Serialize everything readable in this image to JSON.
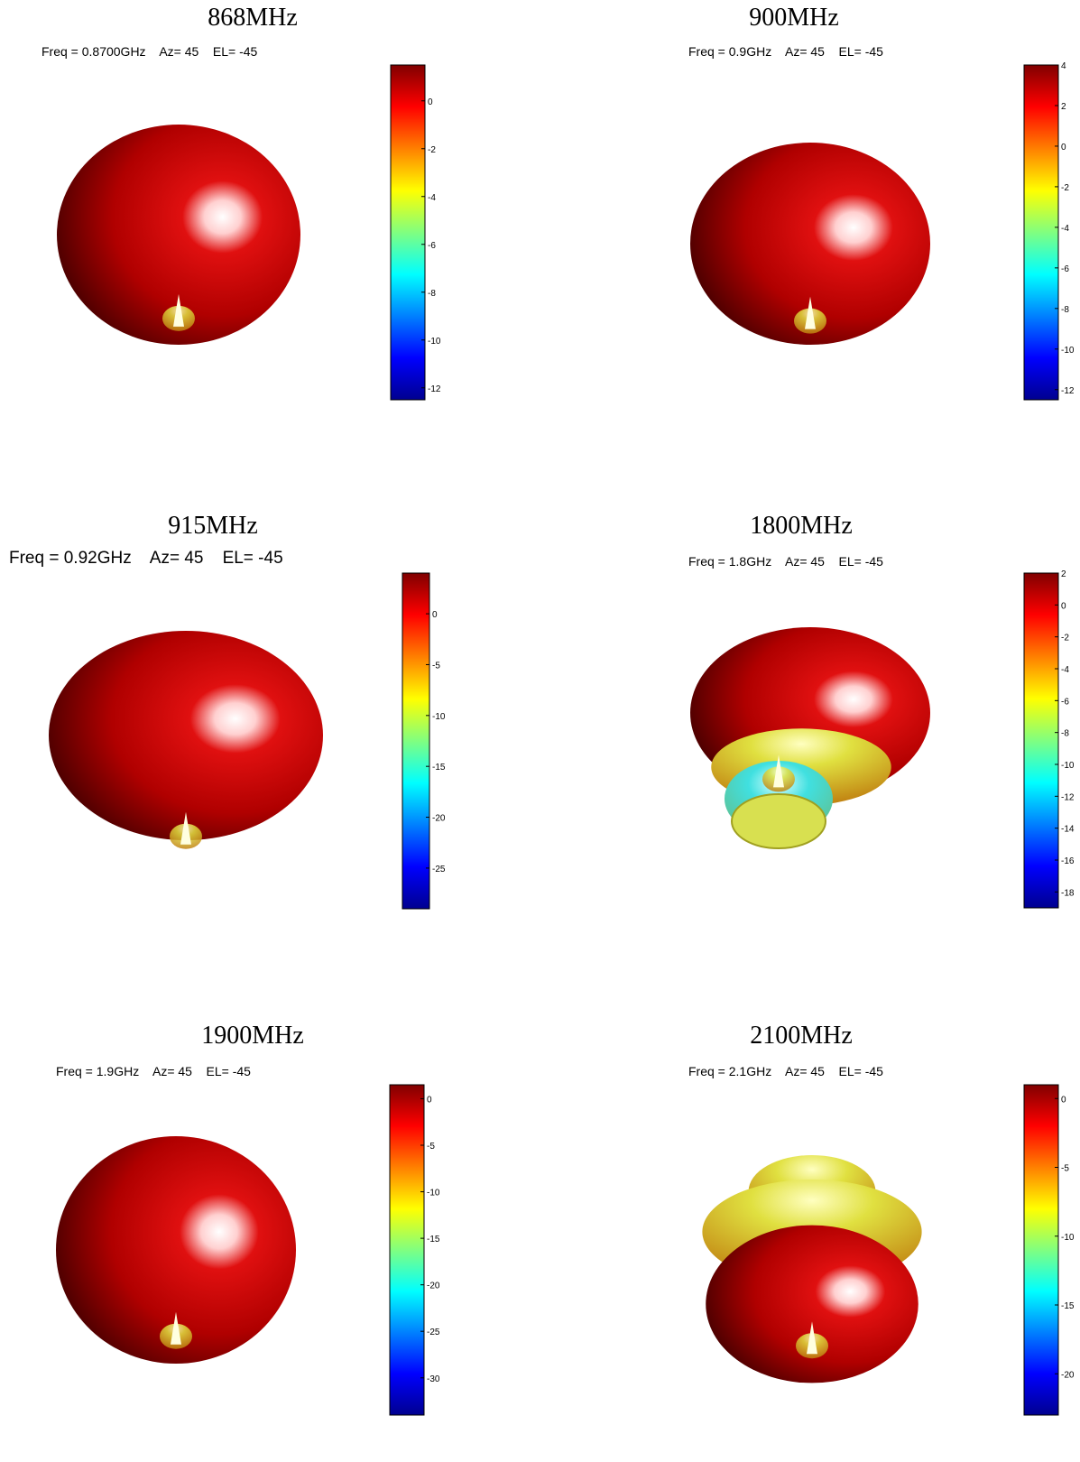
{
  "chart_data": [
    {
      "type": "surface",
      "title": "868MHz",
      "caption": "Freq = 0.8700GHz    Az= 45    EL= -45",
      "colorbar": {
        "range": [
          -12.5,
          1.5
        ],
        "ticks": [
          0,
          -2,
          -4,
          -6,
          -8,
          -10,
          -12
        ]
      },
      "shape": "sphere",
      "colormap": "jet"
    },
    {
      "type": "surface",
      "title": "900MHz",
      "caption": "Freq = 0.9GHz    Az= 45    EL= -45",
      "colorbar": {
        "range": [
          -12.5,
          4
        ],
        "ticks": [
          4,
          2,
          0,
          -2,
          -4,
          -6,
          -8,
          -10,
          -12
        ]
      },
      "shape": "sphere",
      "colormap": "jet"
    },
    {
      "type": "surface",
      "title": "915MHz",
      "caption": "Freq = 0.92GHz    Az= 45    EL= -45",
      "colorbar": {
        "range": [
          -29,
          4
        ],
        "ticks": [
          0,
          -5,
          -10,
          -15,
          -20,
          -25
        ]
      },
      "shape": "oblate",
      "colormap": "jet"
    },
    {
      "type": "surface",
      "title": "1800MHz",
      "caption": "Freq = 1.8GHz    Az= 45    EL= -45",
      "colorbar": {
        "range": [
          -19,
          2
        ],
        "ticks": [
          2,
          0,
          -2,
          -4,
          -6,
          -8,
          -10,
          -12,
          -14,
          -16,
          -18
        ]
      },
      "shape": "bell",
      "colormap": "jet"
    },
    {
      "type": "surface",
      "title": "1900MHz",
      "caption": "Freq = 1.9GHz    Az= 45    EL= -45",
      "colorbar": {
        "range": [
          -34,
          1.5
        ],
        "ticks": [
          0,
          -5,
          -10,
          -15,
          -20,
          -25,
          -30
        ]
      },
      "shape": "sphere",
      "colormap": "jet"
    },
    {
      "type": "surface",
      "title": "2100MHz",
      "caption": "Freq = 2.1GHz    Az= 45    EL= -45",
      "colorbar": {
        "range": [
          -23,
          1
        ],
        "ticks": [
          0,
          -5,
          -10,
          -15,
          -20
        ]
      },
      "shape": "rings",
      "colormap": "jet"
    }
  ]
}
